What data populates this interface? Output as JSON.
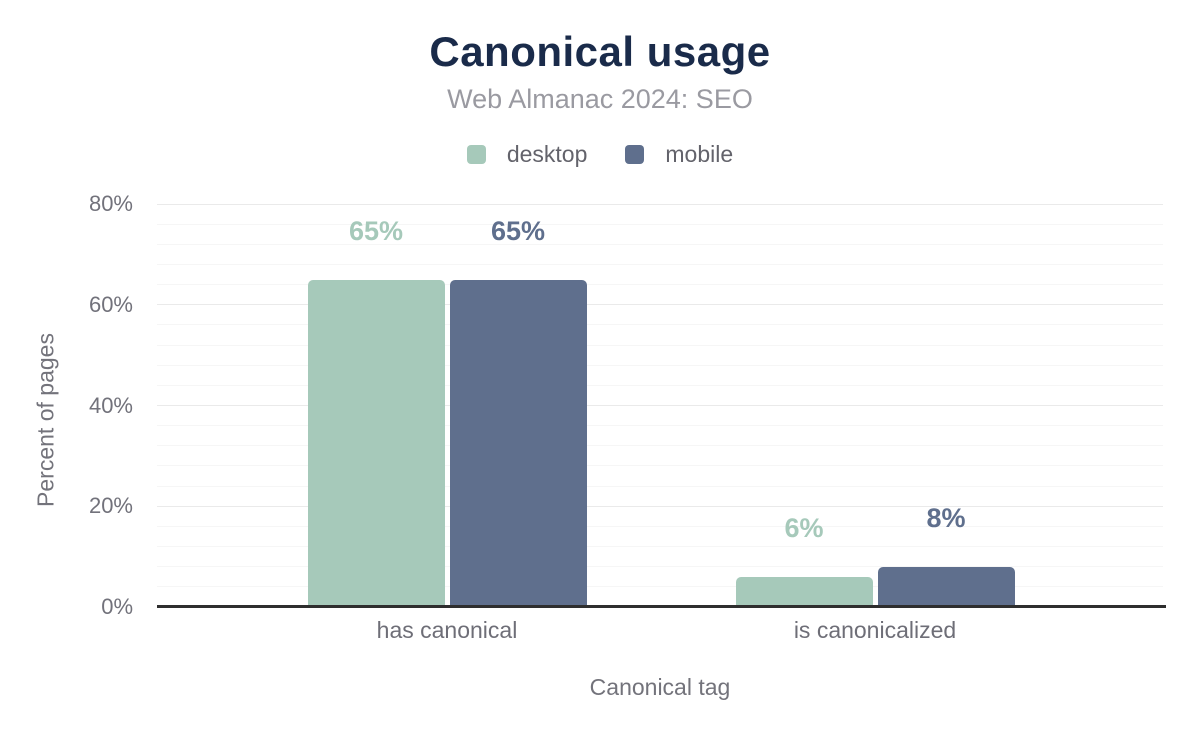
{
  "header": {
    "title": "Canonical usage",
    "subtitle": "Web Almanac 2024: SEO"
  },
  "legend": {
    "items": [
      {
        "name": "desktop",
        "label": "desktop",
        "color": "#a6c9ba"
      },
      {
        "name": "mobile",
        "label": "mobile",
        "color": "#5f6f8d"
      }
    ]
  },
  "chart_data": {
    "type": "bar",
    "title": "Canonical usage",
    "subtitle": "Web Almanac 2024: SEO",
    "categories": [
      "has canonical",
      "is canonicalized"
    ],
    "series": [
      {
        "name": "desktop",
        "color": "#a6c9ba",
        "values": [
          65,
          6
        ],
        "value_labels": [
          "65%",
          "6%"
        ]
      },
      {
        "name": "mobile",
        "color": "#5f6f8d",
        "values": [
          65,
          8
        ],
        "value_labels": [
          "65%",
          "8%"
        ]
      }
    ],
    "xlabel": "Canonical tag",
    "ylabel": "Percent of pages",
    "ylim": [
      0,
      80
    ],
    "yticks": [
      {
        "value": 0,
        "label": "0%"
      },
      {
        "value": 20,
        "label": "20%"
      },
      {
        "value": 40,
        "label": "40%"
      },
      {
        "value": 60,
        "label": "60%"
      },
      {
        "value": 80,
        "label": "80%"
      }
    ],
    "major_grid_interval": 20,
    "minor_grid_interval": 4,
    "grid": true,
    "legend_position": "top",
    "colors": {
      "title": "#1a2b4a",
      "subtitle": "#9a9aa1",
      "axis_text": "#72727b",
      "baseline": "#2e2e2e",
      "grid_minor": "#f6f6f6",
      "grid_major": "#eaeaea",
      "background": "#ffffff"
    }
  }
}
